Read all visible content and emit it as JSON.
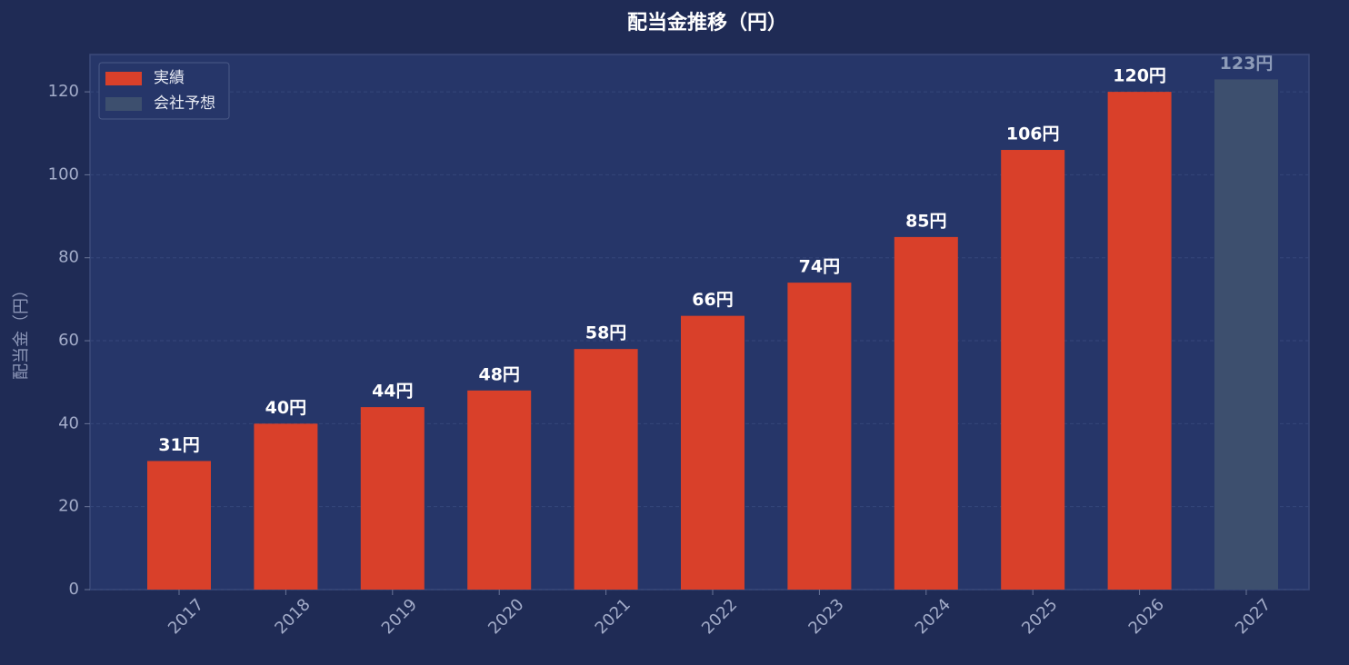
{
  "chart_data": {
    "type": "bar",
    "title": "配当金推移（円）",
    "y_label": "配当金（円）",
    "categories": [
      "2017",
      "2018",
      "2019",
      "2020",
      "2021",
      "2022",
      "2023",
      "2024",
      "2025",
      "2026",
      "2027"
    ],
    "series": [
      {
        "name": "実績",
        "color": "#d9402a",
        "values": [
          31,
          40,
          44,
          48,
          58,
          66,
          74,
          85,
          106,
          120,
          null
        ],
        "value_labels": [
          "31円",
          "40円",
          "44円",
          "48円",
          "58円",
          "66円",
          "74円",
          "85円",
          "106円",
          "120円",
          null
        ]
      },
      {
        "name": "会社予想",
        "color": "#3d4f6e",
        "values": [
          null,
          null,
          null,
          null,
          null,
          null,
          null,
          null,
          null,
          null,
          123
        ],
        "value_labels": [
          null,
          null,
          null,
          null,
          null,
          null,
          null,
          null,
          null,
          null,
          "123円"
        ]
      }
    ],
    "ylim": [
      0,
      129
    ],
    "yticks": [
      0,
      20,
      40,
      60,
      80,
      100,
      120
    ],
    "grid": true,
    "legend": "upper left"
  }
}
